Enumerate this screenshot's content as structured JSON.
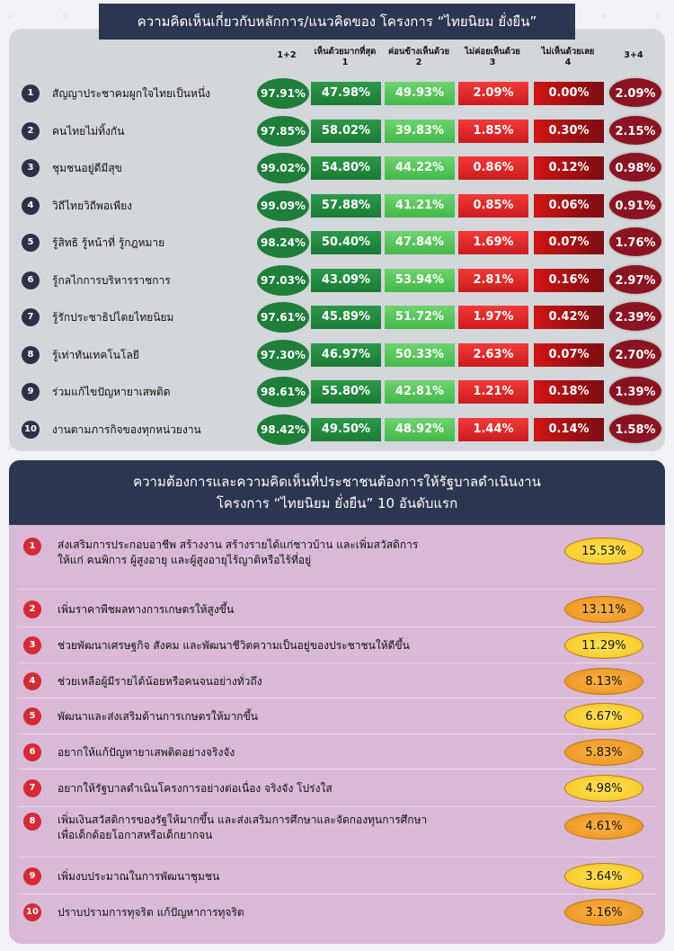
{
  "section1": {
    "title": "ความคิดเห็นเกี่ยวกับหลักการ/แนวคิดของ โครงการ “ไทยนิยม ยั่งยืน”",
    "columns": {
      "sum12": "1+2",
      "c1_label": "เห็นด้วยมากที่สุด",
      "c1_num": "1",
      "c2_label": "ค่อนข้างเห็นด้วย",
      "c2_num": "2",
      "c3_label": "ไม่ค่อยเห็นด้วย",
      "c3_num": "3",
      "c4_label": "ไม่เห็นด้วยเลย",
      "c4_num": "4",
      "sum34": "3+4"
    }
  },
  "section2": {
    "title_line1": "ความต้องการและความคิดเห็นที่ประชาชนต้องการให้รัฐบาลดำเนินงาน",
    "title_line2": "โครงการ “ไทยนิยม ยั่งยืน” 10 อันดับแรก"
  },
  "colors": {
    "title_bg": "#2c3650",
    "agree_most": "#1a7a35",
    "agree_somewhat": "#43b84a",
    "disagree_somewhat": "#cc1b1b",
    "disagree_strongly": "#7a0d12",
    "sum12_oval": "#1e7e3a",
    "sum34_oval": "#8b1422",
    "panel2_bg": "#d9b9d6"
  },
  "chart_data": [
    {
      "type": "table",
      "columns": [
        "1+2",
        "1",
        "2",
        "3",
        "4",
        "3+4"
      ],
      "rows": [
        {
          "rank": "1",
          "label": "สัญญาประชาคมผูกใจไทยเป็นหนึ่ง",
          "sum12": "97.91%",
          "c1": "47.98%",
          "c2": "49.93%",
          "c3": "2.09%",
          "c4": "0.00%",
          "sum34": "2.09%"
        },
        {
          "rank": "2",
          "label": "คนไทยไม่ทิ้งกัน",
          "sum12": "97.85%",
          "c1": "58.02%",
          "c2": "39.83%",
          "c3": "1.85%",
          "c4": "0.30%",
          "sum34": "2.15%"
        },
        {
          "rank": "3",
          "label": "ชุมชนอยู่ดีมีสุข",
          "sum12": "99.02%",
          "c1": "54.80%",
          "c2": "44.22%",
          "c3": "0.86%",
          "c4": "0.12%",
          "sum34": "0.98%"
        },
        {
          "rank": "4",
          "label": "วิถีไทยวิถีพอเพียง",
          "sum12": "99.09%",
          "c1": "57.88%",
          "c2": "41.21%",
          "c3": "0.85%",
          "c4": "0.06%",
          "sum34": "0.91%"
        },
        {
          "rank": "5",
          "label": "รู้สิทธิ รู้หน้าที่ รู้กฎหมาย",
          "sum12": "98.24%",
          "c1": "50.40%",
          "c2": "47.84%",
          "c3": "1.69%",
          "c4": "0.07%",
          "sum34": "1.76%"
        },
        {
          "rank": "6",
          "label": "รู้กลไกการบริหารราชการ",
          "sum12": "97.03%",
          "c1": "43.09%",
          "c2": "53.94%",
          "c3": "2.81%",
          "c4": "0.16%",
          "sum34": "2.97%"
        },
        {
          "rank": "7",
          "label": "รู้รักประชาธิปไตยไทยนิยม",
          "sum12": "97.61%",
          "c1": "45.89%",
          "c2": "51.72%",
          "c3": "1.97%",
          "c4": "0.42%",
          "sum34": "2.39%"
        },
        {
          "rank": "8",
          "label": "รู้เท่าทันเทคโนโลยี",
          "sum12": "97.30%",
          "c1": "46.97%",
          "c2": "50.33%",
          "c3": "2.63%",
          "c4": "0.07%",
          "sum34": "2.70%"
        },
        {
          "rank": "9",
          "label": "ร่วมแก้ไขปัญหายาเสพติด",
          "sum12": "98.61%",
          "c1": "55.80%",
          "c2": "42.81%",
          "c3": "1.21%",
          "c4": "0.18%",
          "sum34": "1.39%"
        },
        {
          "rank": "10",
          "label": "งานตามภารกิจของทุกหน่วยงาน",
          "sum12": "98.42%",
          "c1": "49.50%",
          "c2": "48.92%",
          "c3": "1.44%",
          "c4": "0.14%",
          "sum34": "1.58%"
        }
      ]
    },
    {
      "type": "table",
      "rows": [
        {
          "rank": "1",
          "lines": [
            "ส่งเสริมการประกอบอาชีพ สร้างงาน สร้างรายได้แก่ชาวบ้าน และเพิ่มสวัสดิการ",
            "ให้แก่ คนพิการ ผู้สูงอายุ และผู้สูงอายุไร้ญาติหรือไร้ที่อยู่"
          ],
          "value": "15.53%",
          "pill": "yellow"
        },
        {
          "rank": "2",
          "lines": [
            "เพิ่มราคาพืชผลทางการเกษตรให้สูงขึ้น"
          ],
          "value": "13.11%",
          "pill": "orange"
        },
        {
          "rank": "3",
          "lines": [
            "ช่วยพัฒนาเศรษฐกิจ สังคม และพัฒนาชีวิตความเป็นอยู่ของประชาชนให้ดีขึ้น"
          ],
          "value": "11.29%",
          "pill": "yellow"
        },
        {
          "rank": "4",
          "lines": [
            "ช่วยเหลือผู้มีรายได้น้อยหรือคนจนอย่างทั่วถึง"
          ],
          "value": "8.13%",
          "pill": "orange"
        },
        {
          "rank": "5",
          "lines": [
            "พัฒนาและส่งเสริมด้านการเกษตรให้มากขึ้น"
          ],
          "value": "6.67%",
          "pill": "yellow"
        },
        {
          "rank": "6",
          "lines": [
            "อยากให้แก้ปัญหายาเสพติดอย่างจริงจัง"
          ],
          "value": "5.83%",
          "pill": "orange"
        },
        {
          "rank": "7",
          "lines": [
            "อยากให้รัฐบาลดำเนินโครงการอย่างต่อเนื่อง จริงจัง โปร่งใส"
          ],
          "value": "4.98%",
          "pill": "yellow"
        },
        {
          "rank": "8",
          "lines": [
            "เพิ่มเงินสวัสดิการของรัฐให้มากขึ้น และส่งเสริมการศึกษาและจัดกองทุนการศึกษา",
            "เพื่อเด็กด้อยโอกาสหรือเด็กยากจน"
          ],
          "value": "4.61%",
          "pill": "orange"
        },
        {
          "rank": "9",
          "lines": [
            "เพิ่มงบประมาณในการพัฒนาชุมชน"
          ],
          "value": "3.64%",
          "pill": "yellow"
        },
        {
          "rank": "10",
          "lines": [
            "ปราบปรามการทุจริต แก้ปัญหาการทุจริต"
          ],
          "value": "3.16%",
          "pill": "orange"
        }
      ]
    }
  ]
}
